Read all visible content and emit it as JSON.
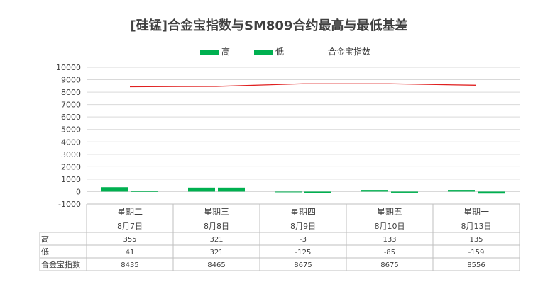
{
  "chart_data": {
    "type": "bar",
    "title": "[硅锰]合金宝指数与SM809合约最高与最低基差",
    "categories": [
      {
        "weekday": "星期二",
        "date": "8月7日"
      },
      {
        "weekday": "星期三",
        "date": "8月8日"
      },
      {
        "weekday": "星期四",
        "date": "8月9日"
      },
      {
        "weekday": "星期五",
        "date": "8月10日"
      },
      {
        "weekday": "星期一",
        "date": "8月13日"
      }
    ],
    "series": [
      {
        "name": "高",
        "type": "bar",
        "color": "#00b050",
        "values": [
          355,
          321,
          -3,
          133,
          135
        ]
      },
      {
        "name": "低",
        "type": "bar",
        "color": "#00b050",
        "values": [
          41,
          321,
          -125,
          -85,
          -159
        ]
      },
      {
        "name": "合金宝指数",
        "type": "line",
        "color": "#e02020",
        "values": [
          8435,
          8465,
          8675,
          8675,
          8556
        ]
      }
    ],
    "ylim": [
      -1000,
      10000
    ],
    "yticks": [
      "10000",
      "9000",
      "8000",
      "7000",
      "6000",
      "5000",
      "4000",
      "3000",
      "2000",
      "1000",
      "0",
      "-1000"
    ],
    "grid": true,
    "legend_position": "top",
    "data_table": true
  }
}
